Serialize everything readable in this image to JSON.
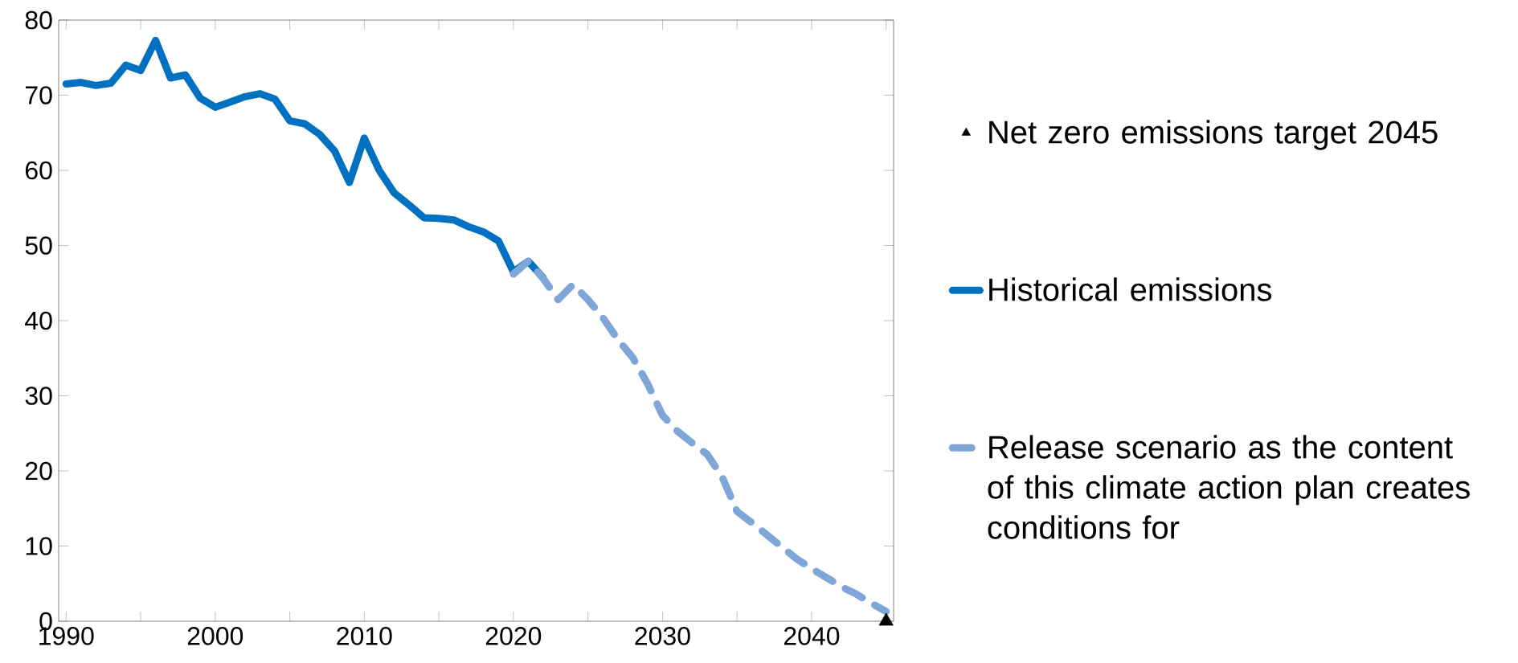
{
  "chart_data": {
    "type": "line",
    "xlim": [
      1989.5,
      2045.5
    ],
    "xticks": [
      1990,
      {
        "value": 1995,
        "label": null
      },
      2000,
      {
        "value": 2005,
        "label": null
      },
      2010,
      {
        "value": 2015,
        "label": null
      },
      2020,
      {
        "value": 2025,
        "label": null
      },
      2030,
      {
        "value": 2035,
        "label": null
      },
      2040,
      {
        "value": 2045,
        "label": null
      }
    ],
    "ylim": [
      0,
      80
    ],
    "yticks": [
      0,
      10,
      20,
      30,
      40,
      50,
      60,
      70,
      80
    ],
    "legend": "right",
    "series": [
      {
        "name": "Net zero emissions target 2045",
        "type": "scatter",
        "marker": "triangle",
        "color": "#000000",
        "x": [
          2045
        ],
        "values": [
          0
        ]
      },
      {
        "name": "Historical emissions",
        "line_style": "solid",
        "color": "#0070c0",
        "x": [
          1990,
          1991,
          1992,
          1993,
          1994,
          1995,
          1996,
          1997,
          1998,
          1999,
          2000,
          2001,
          2002,
          2003,
          2004,
          2005,
          2006,
          2007,
          2008,
          2009,
          2010,
          2011,
          2012,
          2013,
          2014,
          2015,
          2016,
          2017,
          2018,
          2019,
          2020,
          2021,
          2022
        ],
        "values": [
          71.5,
          71.7,
          71.3,
          71.6,
          74.0,
          73.3,
          77.3,
          72.3,
          72.7,
          69.6,
          68.4,
          69.1,
          69.8,
          70.2,
          69.5,
          66.6,
          66.2,
          64.8,
          62.6,
          58.4,
          64.3,
          60.0,
          57.0,
          55.4,
          53.7,
          53.6,
          53.4,
          52.5,
          51.8,
          50.6,
          46.5,
          47.9,
          45.7
        ]
      },
      {
        "name": "Release scenario as the content of this climate action plan creates conditions for",
        "line_style": "dashed",
        "color": "#7fa6d9",
        "x": [
          2020,
          2021,
          2022,
          2023,
          2024,
          2025,
          2026,
          2027,
          2028,
          2029,
          2030,
          2031,
          2032,
          2033,
          2034,
          2035,
          2036,
          2037,
          2038,
          2039,
          2040,
          2041,
          2042,
          2043,
          2044,
          2045
        ],
        "values": [
          46.2,
          47.9,
          45.6,
          42.8,
          44.8,
          42.8,
          40.4,
          37.5,
          35.1,
          31.6,
          27.4,
          25.3,
          23.7,
          22.2,
          19.2,
          14.6,
          13.1,
          11.5,
          9.9,
          8.3,
          7.0,
          5.8,
          4.6,
          3.6,
          2.4,
          1.3
        ]
      }
    ]
  }
}
